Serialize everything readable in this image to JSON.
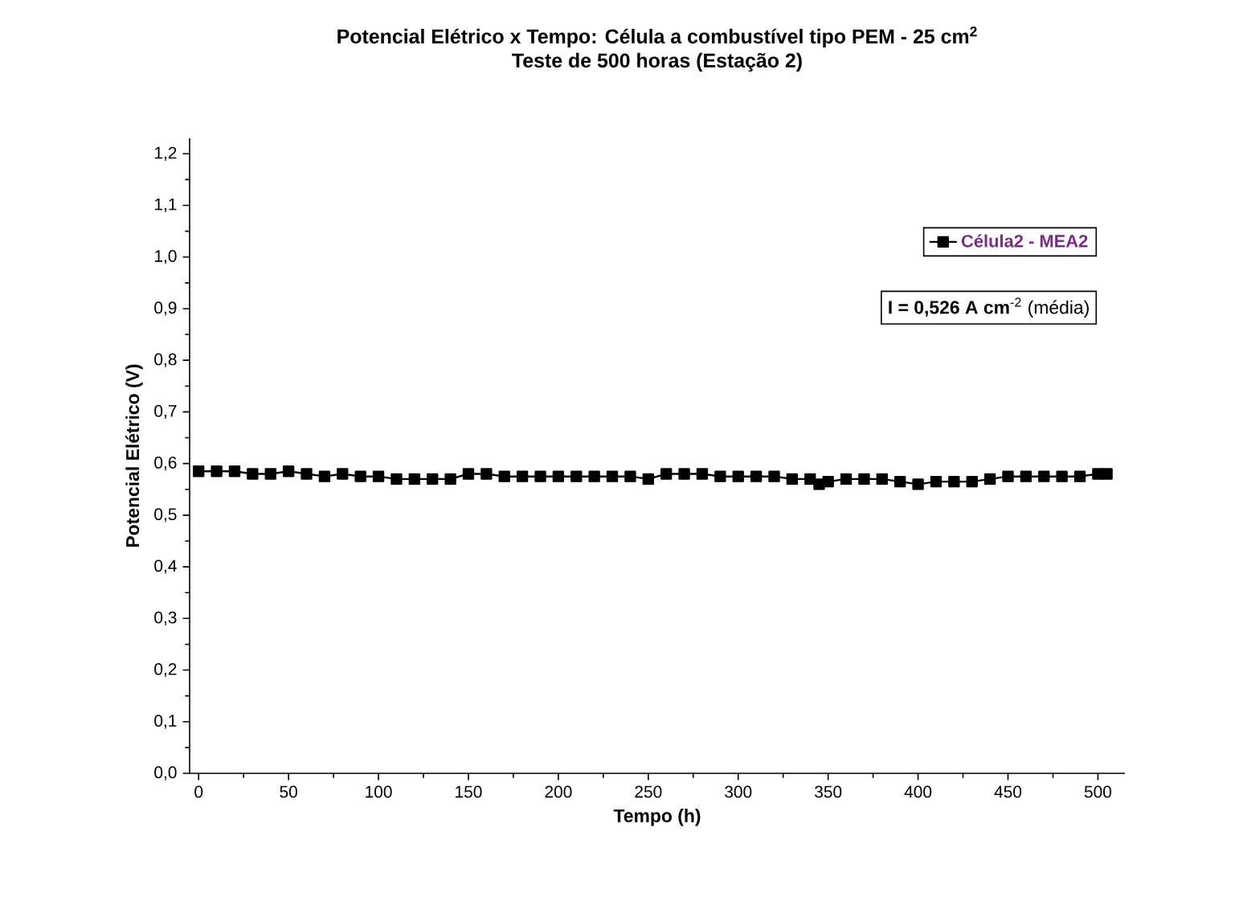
{
  "chart_data": {
    "type": "line",
    "title": "Potencial Elétrico x Tempo: Célula a combustível tipo PEM - 25 cm$^{2}$",
    "subtitle": "Teste de 500 horas (Estação 2)",
    "xlabel": "Tempo (h)",
    "ylabel": "Potencial Elétrico (V)",
    "annotations": [
      "**I = 0,526 A cm**$^{-2}$ (média)"
    ],
    "legend": "top right",
    "marker": "square",
    "line_style": "solid",
    "xlim": [
      -5,
      515
    ],
    "ylim": [
      0,
      1.23
    ],
    "xticks": [
      0,
      50,
      100,
      150,
      200,
      250,
      300,
      350,
      400,
      450,
      500
    ],
    "yticks": [
      {
        "value": 0,
        "label": "0,0"
      },
      {
        "value": 0.1,
        "label": "0,1"
      },
      {
        "value": 0.2,
        "label": "0,2"
      },
      {
        "value": 0.3,
        "label": "0,3"
      },
      {
        "value": 0.4,
        "label": "0,4"
      },
      {
        "value": 0.5,
        "label": "0,5"
      },
      {
        "value": 0.6,
        "label": "0,6"
      },
      {
        "value": 0.7,
        "label": "0,7"
      },
      {
        "value": 0.8,
        "label": "0,8"
      },
      {
        "value": 0.9,
        "label": "0,9"
      },
      {
        "value": 1.0,
        "label": "1,0"
      },
      {
        "value": 1.1,
        "label": "1,1"
      },
      {
        "value": 1.2,
        "label": "1,2"
      }
    ],
    "series": [
      {
        "name": "Célula2 - MEA2",
        "color": "#000000",
        "x": [
          0,
          10,
          20,
          30,
          40,
          50,
          60,
          70,
          80,
          90,
          100,
          110,
          120,
          130,
          140,
          150,
          160,
          170,
          180,
          190,
          200,
          210,
          220,
          230,
          240,
          250,
          260,
          270,
          280,
          290,
          300,
          310,
          320,
          330,
          340,
          345,
          350,
          360,
          370,
          380,
          390,
          400,
          410,
          420,
          430,
          440,
          450,
          460,
          470,
          480,
          490,
          500,
          505
        ],
        "values": [
          0.585,
          0.585,
          0.585,
          0.58,
          0.58,
          0.585,
          0.58,
          0.575,
          0.58,
          0.575,
          0.575,
          0.57,
          0.57,
          0.57,
          0.57,
          0.58,
          0.58,
          0.575,
          0.575,
          0.575,
          0.575,
          0.575,
          0.575,
          0.575,
          0.575,
          0.57,
          0.58,
          0.58,
          0.58,
          0.575,
          0.575,
          0.575,
          0.575,
          0.57,
          0.57,
          0.56,
          0.565,
          0.57,
          0.57,
          0.57,
          0.565,
          0.56,
          0.565,
          0.565,
          0.565,
          0.57,
          0.575,
          0.575,
          0.575,
          0.575,
          0.575,
          0.58,
          0.58
        ]
      }
    ]
  }
}
